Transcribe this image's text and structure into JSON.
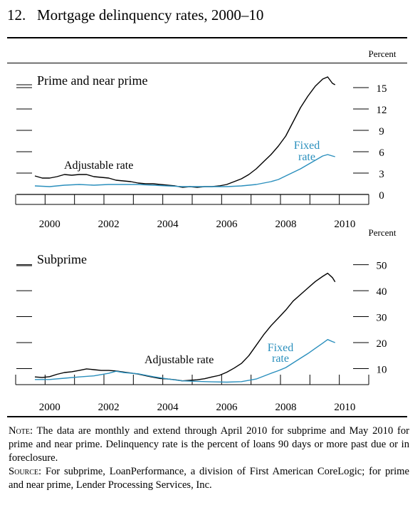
{
  "figure": {
    "number": "12.",
    "title": "Mortgage delinquency rates, 2000–10"
  },
  "chart_data": [
    {
      "type": "line",
      "panel_label": "Prime and near prime",
      "unit_label": "Percent",
      "x_ticks": [
        "2000",
        "2002",
        "2004",
        "2006",
        "2008",
        "2010"
      ],
      "x_range": [
        2000.0,
        2010.25
      ],
      "y_ticks": [
        0,
        3,
        6,
        9,
        12,
        15
      ],
      "ylim": [
        0,
        16.5
      ],
      "colors": {
        "Adjustable rate": "#000000",
        "Fixed rate": "#2a8fbd"
      },
      "series": [
        {
          "name": "Adjustable rate",
          "label_lines": [
            "Adjustable rate"
          ],
          "points": [
            [
              2000.0,
              2.6
            ],
            [
              2000.25,
              2.3
            ],
            [
              2000.5,
              2.3
            ],
            [
              2000.75,
              2.5
            ],
            [
              2001.0,
              2.8
            ],
            [
              2001.25,
              2.7
            ],
            [
              2001.5,
              2.8
            ],
            [
              2001.75,
              2.8
            ],
            [
              2002.0,
              2.5
            ],
            [
              2002.25,
              2.4
            ],
            [
              2002.5,
              2.3
            ],
            [
              2002.75,
              2.0
            ],
            [
              2003.0,
              1.9
            ],
            [
              2003.25,
              1.8
            ],
            [
              2003.5,
              1.6
            ],
            [
              2003.75,
              1.5
            ],
            [
              2004.0,
              1.5
            ],
            [
              2004.25,
              1.4
            ],
            [
              2004.5,
              1.3
            ],
            [
              2004.75,
              1.2
            ],
            [
              2005.0,
              1.0
            ],
            [
              2005.25,
              1.1
            ],
            [
              2005.5,
              1.0
            ],
            [
              2005.75,
              1.1
            ],
            [
              2006.0,
              1.1
            ],
            [
              2006.25,
              1.2
            ],
            [
              2006.5,
              1.4
            ],
            [
              2006.75,
              1.8
            ],
            [
              2007.0,
              2.2
            ],
            [
              2007.25,
              2.8
            ],
            [
              2007.5,
              3.6
            ],
            [
              2007.75,
              4.6
            ],
            [
              2008.0,
              5.6
            ],
            [
              2008.25,
              6.8
            ],
            [
              2008.5,
              8.2
            ],
            [
              2008.75,
              10.2
            ],
            [
              2009.0,
              12.2
            ],
            [
              2009.25,
              13.8
            ],
            [
              2009.5,
              15.2
            ],
            [
              2009.75,
              16.2
            ],
            [
              2009.92,
              16.5
            ],
            [
              2010.08,
              15.6
            ],
            [
              2010.17,
              15.4
            ]
          ]
        },
        {
          "name": "Fixed rate",
          "label_lines": [
            "Fixed",
            "rate"
          ],
          "points": [
            [
              2000.0,
              1.2
            ],
            [
              2000.5,
              1.1
            ],
            [
              2001.0,
              1.3
            ],
            [
              2001.5,
              1.4
            ],
            [
              2002.0,
              1.3
            ],
            [
              2002.5,
              1.4
            ],
            [
              2003.0,
              1.4
            ],
            [
              2003.5,
              1.4
            ],
            [
              2004.0,
              1.3
            ],
            [
              2004.5,
              1.2
            ],
            [
              2005.0,
              1.1
            ],
            [
              2005.5,
              1.1
            ],
            [
              2006.0,
              1.1
            ],
            [
              2006.5,
              1.1
            ],
            [
              2007.0,
              1.2
            ],
            [
              2007.25,
              1.3
            ],
            [
              2007.5,
              1.4
            ],
            [
              2007.75,
              1.6
            ],
            [
              2008.0,
              1.8
            ],
            [
              2008.25,
              2.1
            ],
            [
              2008.5,
              2.6
            ],
            [
              2008.75,
              3.1
            ],
            [
              2009.0,
              3.6
            ],
            [
              2009.25,
              4.2
            ],
            [
              2009.5,
              4.8
            ],
            [
              2009.75,
              5.4
            ],
            [
              2009.92,
              5.6
            ],
            [
              2010.08,
              5.4
            ],
            [
              2010.17,
              5.3
            ]
          ]
        }
      ]
    },
    {
      "type": "line",
      "panel_label": "Subprime",
      "unit_label": "Percent",
      "x_ticks": [
        "2000",
        "2002",
        "2004",
        "2006",
        "2008",
        "2010"
      ],
      "x_range": [
        2000.0,
        2010.25
      ],
      "y_ticks": [
        10,
        20,
        30,
        40,
        50
      ],
      "ylim": [
        0,
        54
      ],
      "colors": {
        "Adjustable rate": "#000000",
        "Fixed rate": "#2a8fbd"
      },
      "series": [
        {
          "name": "Adjustable rate",
          "label_lines": [
            "Adjustable rate"
          ],
          "points": [
            [
              2000.0,
              6.8
            ],
            [
              2000.25,
              6.6
            ],
            [
              2000.5,
              6.9
            ],
            [
              2000.75,
              7.8
            ],
            [
              2001.0,
              8.5
            ],
            [
              2001.25,
              8.8
            ],
            [
              2001.5,
              9.3
            ],
            [
              2001.75,
              9.9
            ],
            [
              2002.0,
              9.6
            ],
            [
              2002.25,
              9.3
            ],
            [
              2002.5,
              9.3
            ],
            [
              2002.75,
              9.1
            ],
            [
              2003.0,
              8.7
            ],
            [
              2003.25,
              8.3
            ],
            [
              2003.5,
              7.9
            ],
            [
              2003.75,
              7.3
            ],
            [
              2004.0,
              6.7
            ],
            [
              2004.25,
              6.2
            ],
            [
              2004.5,
              6.0
            ],
            [
              2004.75,
              5.7
            ],
            [
              2005.0,
              5.3
            ],
            [
              2005.25,
              5.5
            ],
            [
              2005.5,
              5.7
            ],
            [
              2005.75,
              6.1
            ],
            [
              2006.0,
              6.8
            ],
            [
              2006.25,
              7.4
            ],
            [
              2006.5,
              8.6
            ],
            [
              2006.75,
              10.2
            ],
            [
              2007.0,
              12.0
            ],
            [
              2007.25,
              15.0
            ],
            [
              2007.5,
              19.0
            ],
            [
              2007.75,
              23.0
            ],
            [
              2008.0,
              26.5
            ],
            [
              2008.25,
              29.5
            ],
            [
              2008.5,
              32.5
            ],
            [
              2008.75,
              36.0
            ],
            [
              2009.0,
              38.5
            ],
            [
              2009.25,
              41.0
            ],
            [
              2009.5,
              43.5
            ],
            [
              2009.75,
              45.5
            ],
            [
              2009.92,
              46.7
            ],
            [
              2010.08,
              45.0
            ],
            [
              2010.17,
              43.4
            ]
          ]
        },
        {
          "name": "Fixed rate",
          "label_lines": [
            "Fixed",
            "rate"
          ],
          "points": [
            [
              2000.0,
              5.8
            ],
            [
              2000.5,
              5.8
            ],
            [
              2001.0,
              6.3
            ],
            [
              2001.5,
              6.8
            ],
            [
              2002.0,
              7.2
            ],
            [
              2002.5,
              8.2
            ],
            [
              2002.75,
              9.0
            ],
            [
              2003.0,
              8.5
            ],
            [
              2003.5,
              8.0
            ],
            [
              2004.0,
              6.9
            ],
            [
              2004.5,
              6.0
            ],
            [
              2005.0,
              5.3
            ],
            [
              2005.5,
              5.1
            ],
            [
              2006.0,
              4.9
            ],
            [
              2006.5,
              4.8
            ],
            [
              2007.0,
              5.0
            ],
            [
              2007.5,
              6.0
            ],
            [
              2008.0,
              8.2
            ],
            [
              2008.25,
              9.2
            ],
            [
              2008.5,
              10.4
            ],
            [
              2008.75,
              12.2
            ],
            [
              2009.0,
              14.0
            ],
            [
              2009.25,
              15.8
            ],
            [
              2009.5,
              17.8
            ],
            [
              2009.75,
              19.8
            ],
            [
              2009.92,
              21.2
            ],
            [
              2010.08,
              20.4
            ],
            [
              2010.17,
              20.0
            ]
          ]
        }
      ]
    }
  ],
  "note": {
    "note_label": "Note:",
    "note_text": " The data are monthly and extend through April 2010 for subprime and May 2010 for prime and near prime. Delinquency rate is the percent of loans 90 days or more past due or in foreclosure.",
    "source_label": "Source:",
    "source_text": " For subprime, LoanPerformance, a division of First American CoreLogic; for prime and near prime, Lender Processing Services, Inc."
  }
}
